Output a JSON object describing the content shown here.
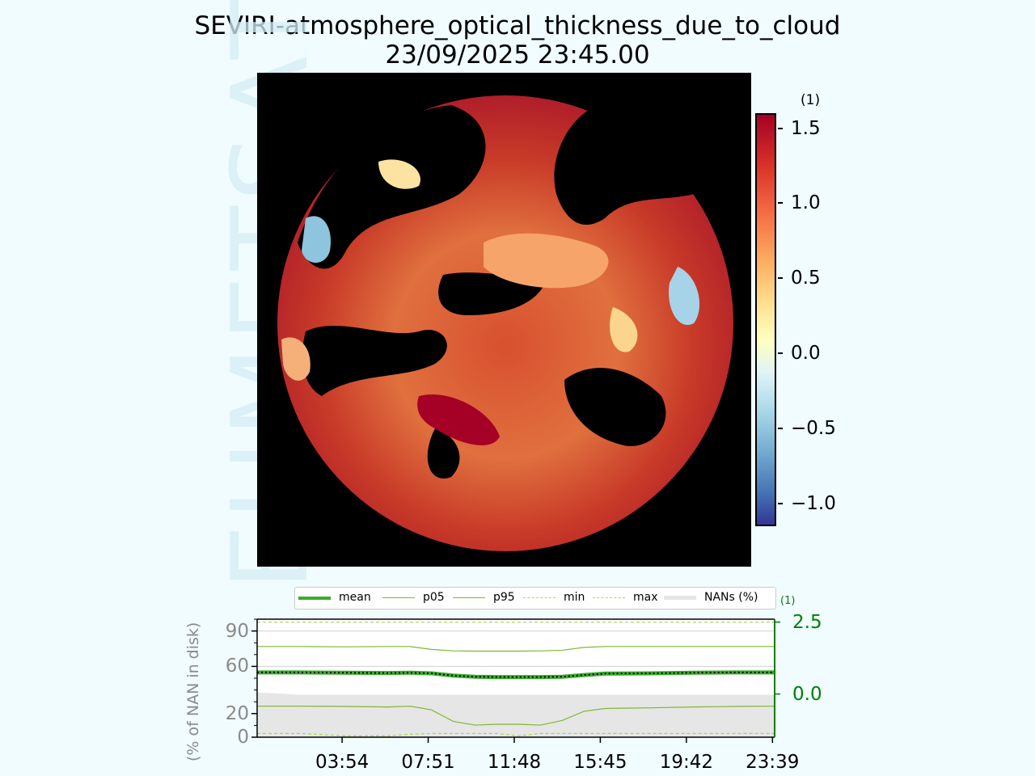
{
  "figure": {
    "title_line1": "SEVIRI-atmosphere_optical_thickness_due_to_cloud",
    "title_line2": "23/09/2025 23:45.00",
    "watermark": "EUMETSAT"
  },
  "colorbar": {
    "unit": "(1)",
    "ticks": [
      "1.5",
      "1.0",
      "0.5",
      "0.0",
      "−0.5",
      "−1.0"
    ],
    "tick_values": [
      1.5,
      1.0,
      0.5,
      0.0,
      -0.5,
      -1.0
    ],
    "range": [
      -1.15,
      1.6
    ],
    "colormap": "RdYlBu_r"
  },
  "colors": {
    "background": "#f0fcff",
    "mean": "#3aac2a",
    "percentiles": "#7fb82e",
    "minmax": "#a8d84c",
    "nans_fill": "#e6e6e6",
    "right_axis": "#008000",
    "left_axis": "#8a8a8a"
  },
  "chart_data": {
    "type": "line",
    "legend": [
      "mean",
      "p05",
      "p95",
      "min",
      "max",
      "NANs (%)"
    ],
    "legend_placement": "top",
    "ylabel_left": "(% of NAN in disk)",
    "ylabel_right": "(1)",
    "yticks_left": [
      "90",
      "60",
      "20",
      "0"
    ],
    "yticks_left_values": [
      90,
      60,
      20,
      0
    ],
    "yticks_right": [
      "2.5",
      "0.0"
    ],
    "yticks_right_values": [
      2.5,
      0.0
    ],
    "ylim_left": [
      0,
      100
    ],
    "ylim_right": [
      -1.5,
      2.6
    ],
    "xticks": [
      "03:54",
      "07:51",
      "11:48",
      "15:45",
      "19:42",
      "23:39"
    ],
    "xticks_hours": [
      3.9,
      7.85,
      11.8,
      15.75,
      19.7,
      23.65
    ],
    "xlim_hours": [
      0,
      23.75
    ],
    "x_hours": [
      0,
      2,
      4,
      6,
      7,
      8,
      9,
      10,
      11,
      12,
      13,
      14,
      15,
      16,
      18,
      20,
      22,
      23.75
    ],
    "series": [
      {
        "name": "mean",
        "values": [
          0.75,
          0.75,
          0.74,
          0.73,
          0.74,
          0.72,
          0.64,
          0.6,
          0.59,
          0.59,
          0.59,
          0.6,
          0.66,
          0.71,
          0.72,
          0.74,
          0.75,
          0.75
        ]
      },
      {
        "name": "p05",
        "values": [
          -0.42,
          -0.42,
          -0.43,
          -0.45,
          -0.42,
          -0.55,
          -0.95,
          -1.08,
          -1.05,
          -1.05,
          -1.08,
          -0.92,
          -0.6,
          -0.5,
          -0.48,
          -0.45,
          -0.43,
          -0.42
        ]
      },
      {
        "name": "p95",
        "values": [
          1.65,
          1.65,
          1.64,
          1.65,
          1.65,
          1.55,
          1.5,
          1.49,
          1.49,
          1.49,
          1.5,
          1.52,
          1.62,
          1.65,
          1.65,
          1.65,
          1.65,
          1.65
        ]
      },
      {
        "name": "min",
        "values": [
          -1.37,
          -1.37,
          -1.45,
          -1.45,
          -1.4,
          -1.37,
          -1.37,
          -1.37,
          -1.37,
          -1.45,
          -1.37,
          -1.37,
          -1.37,
          -1.37,
          -1.37,
          -1.37,
          -1.37,
          -1.37
        ]
      },
      {
        "name": "max",
        "values": [
          2.5,
          2.5,
          2.5,
          2.5,
          2.5,
          2.5,
          2.5,
          2.5,
          2.5,
          2.5,
          2.5,
          2.5,
          2.5,
          2.5,
          2.5,
          2.5,
          2.5,
          2.5
        ]
      },
      {
        "name": "NANs (%)",
        "values": [
          38,
          36,
          36,
          36,
          36,
          36,
          36,
          36,
          36,
          36,
          36,
          36,
          36,
          36,
          36,
          36,
          36,
          36
        ]
      }
    ]
  }
}
